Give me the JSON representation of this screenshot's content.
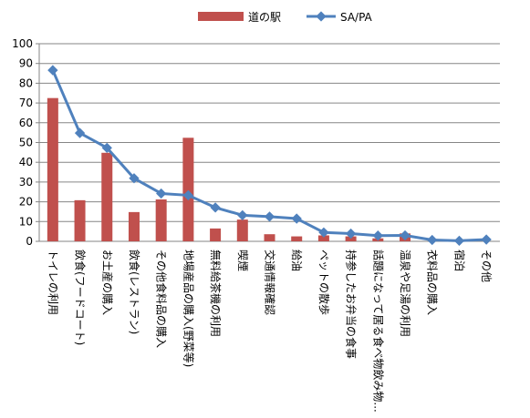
{
  "chart_data": {
    "type": "bar",
    "title": "",
    "xlabel": "",
    "ylabel": "",
    "ylim": [
      0,
      100
    ],
    "yticks": [
      0,
      10,
      20,
      30,
      40,
      50,
      60,
      70,
      80,
      90,
      100
    ],
    "grid": true,
    "legend_position": "top",
    "categories": [
      "トイレの利用",
      "飲食(フードコート)",
      "お土産の購入",
      "飲食(レストラン)",
      "その他食料品の購入",
      "地場産品の購入(野菜等)",
      "無料給茶機の利用",
      "喫煙",
      "交通情報確認",
      "給油",
      "ペットの散歩",
      "持参したお弁当の食事",
      "話題になって居る食べ物飲み物...",
      "温泉や足湯の利用",
      "衣料品の購入",
      "宿泊",
      "その他"
    ],
    "series": [
      {
        "name": "道の駅",
        "type": "bar",
        "color": "#c0504d",
        "values": [
          72.5,
          20.8,
          44.8,
          14.8,
          21.2,
          52.4,
          6.5,
          11.0,
          3.6,
          2.5,
          3.0,
          2.5,
          1.5,
          4.0,
          0.0,
          0.0,
          0.0
        ]
      },
      {
        "name": "SA/PA",
        "type": "line",
        "color": "#4f81bd",
        "values": [
          86.6,
          54.8,
          47.3,
          31.9,
          24.2,
          23.3,
          17.1,
          13.2,
          12.5,
          11.5,
          4.5,
          3.9,
          2.9,
          3.0,
          0.7,
          0.3,
          0.9
        ]
      }
    ]
  }
}
